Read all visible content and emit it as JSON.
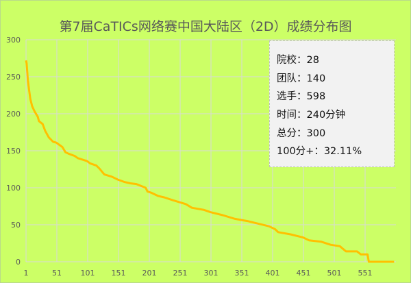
{
  "chart_data": {
    "type": "line",
    "title": "第7届CaTICs网络赛中国大陆区（2D）成绩分布图",
    "xlabel": "",
    "ylabel": "",
    "xlim": [
      1,
      598
    ],
    "ylim": [
      0,
      300
    ],
    "grid": true,
    "x_ticks": [
      "1",
      "51",
      "101",
      "151",
      "201",
      "251",
      "301",
      "351",
      "401",
      "451",
      "501",
      "551"
    ],
    "y_ticks": [
      "0",
      "50",
      "100",
      "150",
      "200",
      "250",
      "300"
    ],
    "line_color": "#ffc000",
    "series": [
      {
        "x": [
          1,
          2,
          4,
          6,
          8,
          11,
          15,
          20,
          22,
          28,
          32,
          38,
          45,
          50,
          60,
          65,
          70,
          80,
          85,
          100,
          105,
          115,
          120,
          128,
          140,
          150,
          160,
          170,
          180,
          195,
          198,
          205,
          215,
          225,
          240,
          260,
          270,
          290,
          300,
          320,
          340,
          360,
          380,
          395,
          405,
          410,
          430,
          450,
          460,
          480,
          495,
          510,
          520,
          538,
          544,
          555,
          557,
          598
        ],
        "y": [
          272,
          268,
          245,
          232,
          220,
          210,
          203,
          196,
          190,
          186,
          177,
          168,
          162,
          161,
          155,
          148,
          146,
          143,
          140,
          136,
          133,
          130,
          126,
          118,
          115,
          111,
          108,
          106,
          105,
          100,
          95,
          93,
          89,
          87,
          83,
          78,
          73,
          70,
          67,
          63,
          58,
          55,
          51,
          48,
          44,
          40,
          37,
          33,
          29,
          27,
          23,
          21,
          14,
          14,
          10,
          10,
          0,
          0
        ]
      }
    ]
  },
  "info_box": [
    "院校：28",
    "团队：140",
    "选手：598",
    "时间：240分钟",
    "总分：300",
    "100分+：32.11%"
  ]
}
